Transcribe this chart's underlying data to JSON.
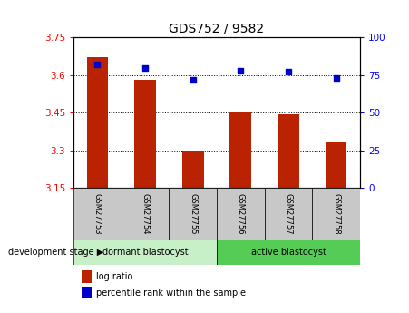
{
  "title": "GDS752 / 9582",
  "samples": [
    "GSM27753",
    "GSM27754",
    "GSM27755",
    "GSM27756",
    "GSM27757",
    "GSM27758"
  ],
  "log_ratio": [
    3.67,
    3.58,
    3.3,
    3.45,
    3.445,
    3.335
  ],
  "percentile": [
    82,
    80,
    72,
    78,
    77,
    73
  ],
  "ylim_left": [
    3.15,
    3.75
  ],
  "yticks_left": [
    3.15,
    3.3,
    3.45,
    3.6,
    3.75
  ],
  "ylim_right": [
    0,
    100
  ],
  "yticks_right": [
    0,
    25,
    50,
    75,
    100
  ],
  "bar_color": "#bb2200",
  "dot_color": "#0000cc",
  "group1_label": "dormant blastocyst",
  "group2_label": "active blastocyst",
  "group1_indices": [
    0,
    1,
    2
  ],
  "group2_indices": [
    3,
    4,
    5
  ],
  "stage_label": "development stage",
  "legend1": "log ratio",
  "legend2": "percentile rank within the sample",
  "group1_color": "#c8f0c8",
  "group2_color": "#55cc55",
  "header_color": "#c8c8c8",
  "bar_width": 0.45
}
